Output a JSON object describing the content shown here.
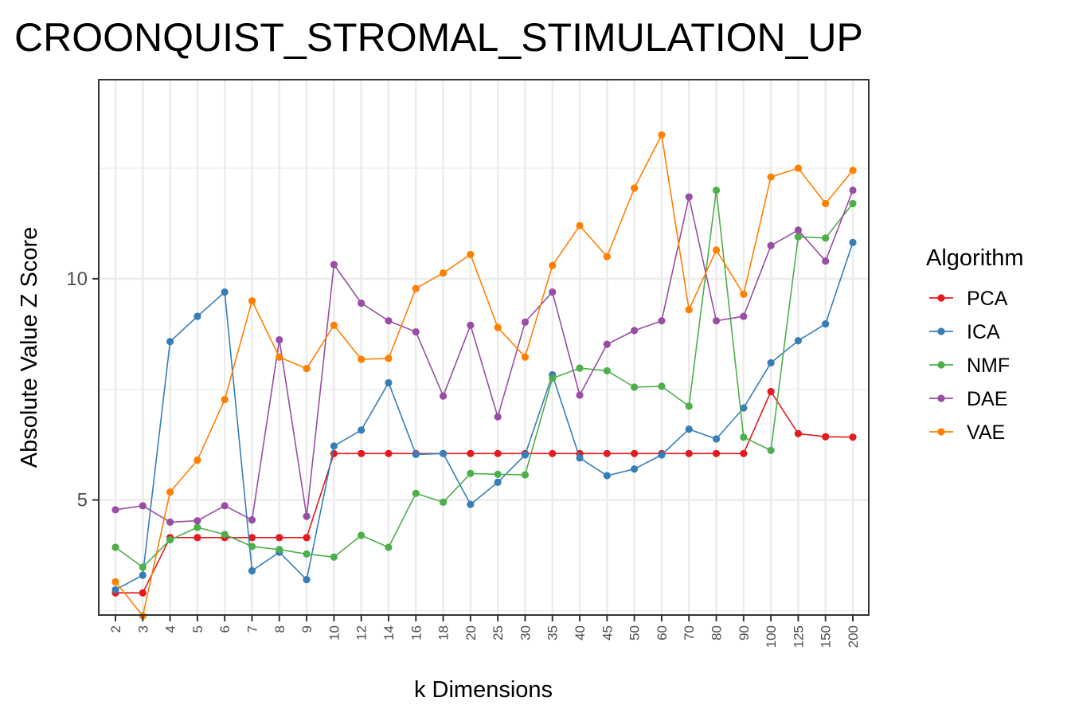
{
  "chart_data": {
    "type": "line",
    "title": "CROONQUIST_STROMAL_STIMULATION_UP",
    "xlabel": "k Dimensions",
    "ylabel": "Absolute Value Z Score",
    "categories": [
      "2",
      "3",
      "4",
      "5",
      "6",
      "7",
      "8",
      "9",
      "10",
      "12",
      "14",
      "16",
      "18",
      "20",
      "25",
      "30",
      "35",
      "40",
      "45",
      "50",
      "60",
      "70",
      "80",
      "90",
      "100",
      "125",
      "150",
      "200"
    ],
    "ylim": [
      2.4,
      14.5
    ],
    "yticks": [
      5,
      10
    ],
    "grid": true,
    "legend": {
      "title": "Algorithm",
      "position": "right"
    },
    "series": [
      {
        "name": "PCA",
        "color": "#e41a1c",
        "values": [
          2.9,
          2.9,
          4.15,
          4.15,
          4.15,
          4.15,
          4.15,
          4.15,
          6.05,
          6.05,
          6.05,
          6.05,
          6.05,
          6.05,
          6.05,
          6.05,
          6.05,
          6.05,
          6.05,
          6.05,
          6.05,
          6.05,
          6.05,
          6.05,
          7.45,
          6.5,
          6.43,
          6.42
        ]
      },
      {
        "name": "ICA",
        "color": "#377eb8",
        "values": [
          2.97,
          3.3,
          8.58,
          9.15,
          9.7,
          3.4,
          3.82,
          3.2,
          6.22,
          6.58,
          7.65,
          6.03,
          6.05,
          4.9,
          5.4,
          6.02,
          7.83,
          5.95,
          5.55,
          5.7,
          6.02,
          6.6,
          6.38,
          7.08,
          8.1,
          8.6,
          8.98,
          10.82
        ]
      },
      {
        "name": "NMF",
        "color": "#4daf4a",
        "values": [
          3.93,
          3.48,
          4.1,
          4.38,
          4.22,
          3.95,
          3.88,
          3.78,
          3.71,
          4.2,
          3.93,
          5.15,
          4.95,
          5.6,
          5.58,
          5.57,
          7.75,
          7.98,
          7.92,
          7.55,
          7.57,
          7.12,
          12.0,
          6.42,
          6.12,
          10.95,
          10.92,
          11.7
        ]
      },
      {
        "name": "DAE",
        "color": "#984ea3",
        "values": [
          4.78,
          4.87,
          4.5,
          4.53,
          4.87,
          4.55,
          8.62,
          4.63,
          10.32,
          9.45,
          9.05,
          8.8,
          7.35,
          8.95,
          6.88,
          9.02,
          9.7,
          7.37,
          8.52,
          8.83,
          9.05,
          11.85,
          9.05,
          9.15,
          10.75,
          11.1,
          10.4,
          12.0
        ]
      },
      {
        "name": "VAE",
        "color": "#ff7f00",
        "values": [
          3.15,
          2.38,
          5.18,
          5.9,
          7.27,
          9.5,
          8.23,
          7.97,
          8.95,
          8.18,
          8.2,
          9.78,
          10.13,
          10.55,
          8.9,
          8.23,
          10.3,
          11.2,
          10.5,
          12.05,
          13.25,
          9.3,
          10.65,
          9.65,
          12.3,
          12.5,
          11.7,
          12.45
        ]
      }
    ]
  }
}
